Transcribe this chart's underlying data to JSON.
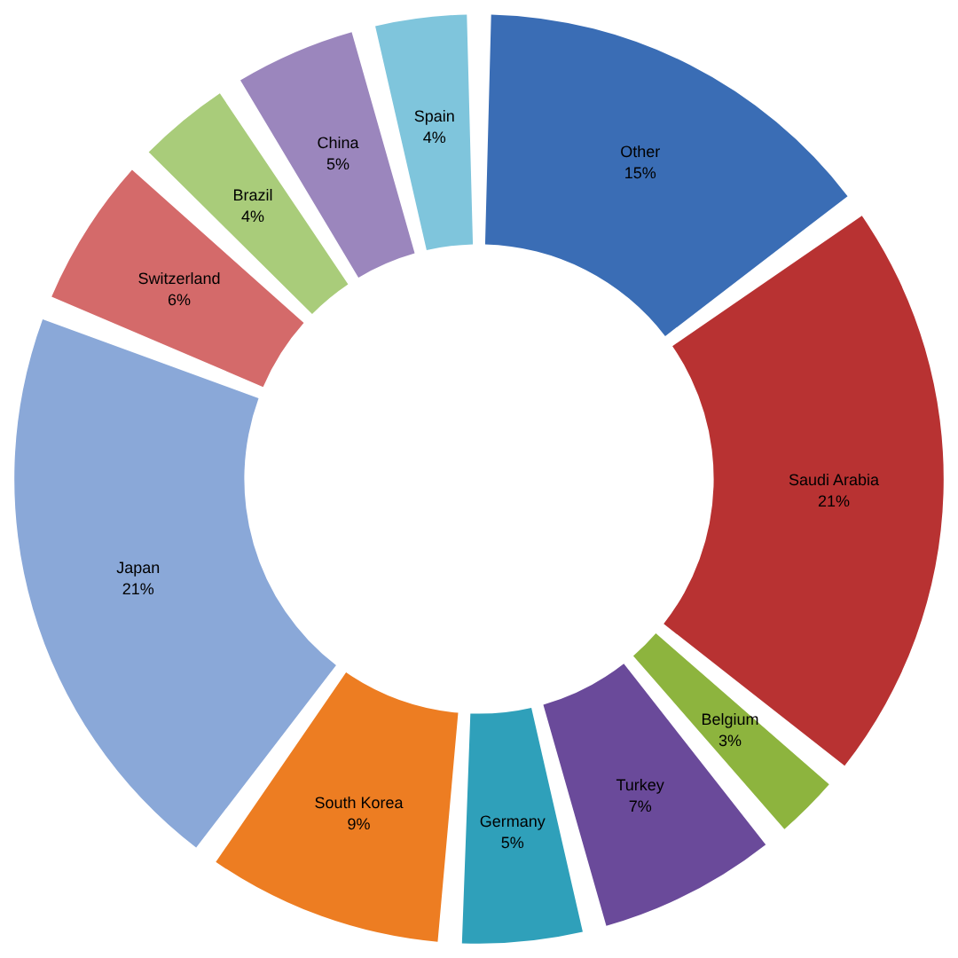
{
  "chart_data": {
    "type": "donut",
    "categories": [
      "Other",
      "Saudi Arabia",
      "Belgium",
      "Turkey",
      "Germany",
      "South Korea",
      "Japan",
      "Switzerland",
      "Brazil",
      "China",
      "Spain"
    ],
    "values": [
      15,
      21,
      3,
      7,
      5,
      9,
      21,
      6,
      4,
      5,
      4
    ],
    "colors": [
      "#3a6db5",
      "#b83232",
      "#8db43e",
      "#6a4a9a",
      "#2fa0ba",
      "#ed7d22",
      "#8aa8d8",
      "#d46a6a",
      "#a9cc7a",
      "#9b86bd",
      "#7fc5dc"
    ],
    "value_labels": [
      "15%",
      "21%",
      "3%",
      "7%",
      "5%",
      "9%",
      "21%",
      "6%",
      "4%",
      "5%",
      "4%"
    ],
    "legend": false
  }
}
